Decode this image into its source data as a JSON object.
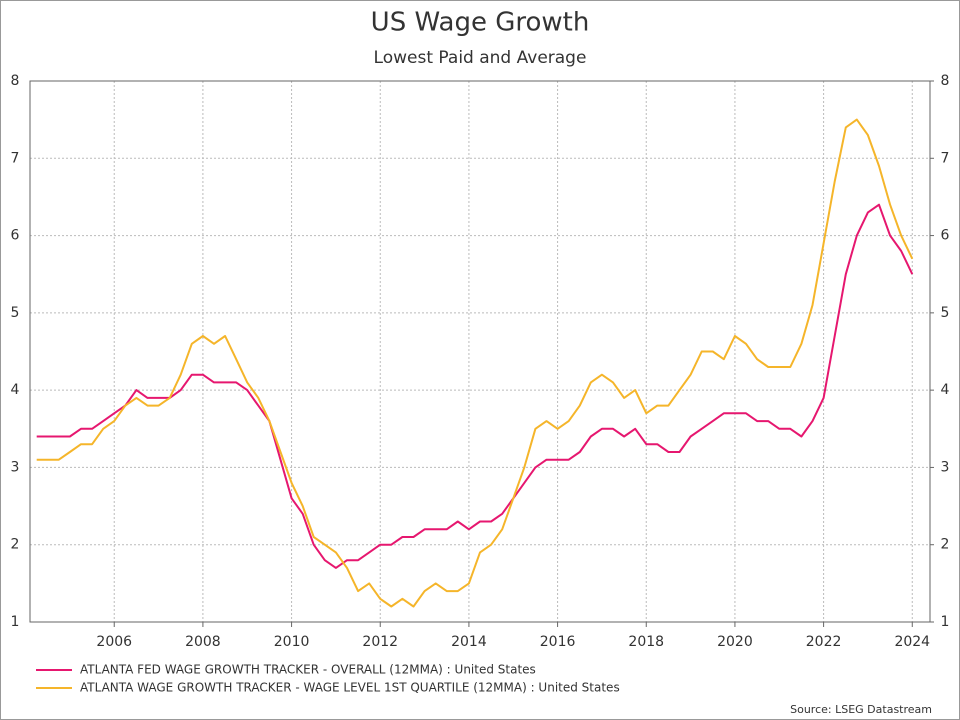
{
  "chart_data": {
    "type": "line",
    "title": "US Wage Growth",
    "subtitle": "Lowest Paid and Average",
    "source": "Source: LSEG Datastream",
    "x": [
      2004.25,
      2004.5,
      2004.75,
      2005,
      2005.25,
      2005.5,
      2005.75,
      2006,
      2006.25,
      2006.5,
      2006.75,
      2007,
      2007.25,
      2007.5,
      2007.75,
      2008,
      2008.25,
      2008.5,
      2008.75,
      2009,
      2009.25,
      2009.5,
      2009.75,
      2010,
      2010.25,
      2010.5,
      2010.75,
      2011,
      2011.25,
      2011.5,
      2011.75,
      2012,
      2012.25,
      2012.5,
      2012.75,
      2013,
      2013.25,
      2013.5,
      2013.75,
      2014,
      2014.25,
      2014.5,
      2014.75,
      2015,
      2015.25,
      2015.5,
      2015.75,
      2016,
      2016.25,
      2016.5,
      2016.75,
      2017,
      2017.25,
      2017.5,
      2017.75,
      2018,
      2018.25,
      2018.5,
      2018.75,
      2019,
      2019.25,
      2019.5,
      2019.75,
      2020,
      2020.25,
      2020.5,
      2020.75,
      2021,
      2021.25,
      2021.5,
      2021.75,
      2022,
      2022.25,
      2022.5,
      2022.75,
      2023,
      2023.25,
      2023.5,
      2023.75,
      2024
    ],
    "series": [
      {
        "name": "ATLANTA FED WAGE GROWTH TRACKER - OVERALL (12MMA) : United States",
        "color": "#e6176f",
        "values": [
          3.4,
          3.4,
          3.4,
          3.4,
          3.5,
          3.5,
          3.6,
          3.7,
          3.8,
          4.0,
          3.9,
          3.9,
          3.9,
          4.0,
          4.2,
          4.2,
          4.1,
          4.1,
          4.1,
          4.0,
          3.8,
          3.6,
          3.1,
          2.6,
          2.4,
          2.0,
          1.8,
          1.7,
          1.8,
          1.8,
          1.9,
          2.0,
          2.0,
          2.1,
          2.1,
          2.2,
          2.2,
          2.2,
          2.3,
          2.2,
          2.3,
          2.3,
          2.4,
          2.6,
          2.8,
          3.0,
          3.1,
          3.1,
          3.1,
          3.2,
          3.4,
          3.5,
          3.5,
          3.4,
          3.5,
          3.3,
          3.3,
          3.2,
          3.2,
          3.4,
          3.5,
          3.6,
          3.7,
          3.7,
          3.7,
          3.6,
          3.6,
          3.5,
          3.5,
          3.4,
          3.6,
          3.9,
          4.7,
          5.5,
          6.0,
          6.3,
          6.4,
          6.0,
          5.8,
          5.5
        ]
      },
      {
        "name": "ATLANTA WAGE GROWTH TRACKER - WAGE LEVEL 1ST QUARTILE (12MMA) : United States",
        "color": "#f5b52a",
        "values": [
          3.1,
          3.1,
          3.1,
          3.2,
          3.3,
          3.3,
          3.5,
          3.6,
          3.8,
          3.9,
          3.8,
          3.8,
          3.9,
          4.2,
          4.6,
          4.7,
          4.6,
          4.7,
          4.4,
          4.1,
          3.9,
          3.6,
          3.2,
          2.8,
          2.5,
          2.1,
          2.0,
          1.9,
          1.7,
          1.4,
          1.5,
          1.3,
          1.2,
          1.3,
          1.2,
          1.4,
          1.5,
          1.4,
          1.4,
          1.5,
          1.9,
          2.0,
          2.2,
          2.6,
          3.0,
          3.5,
          3.6,
          3.5,
          3.6,
          3.8,
          4.1,
          4.2,
          4.1,
          3.9,
          4.0,
          3.7,
          3.8,
          3.8,
          4.0,
          4.2,
          4.5,
          4.5,
          4.4,
          4.7,
          4.6,
          4.4,
          4.3,
          4.3,
          4.3,
          4.6,
          5.1,
          5.9,
          6.7,
          7.4,
          7.5,
          7.3,
          6.9,
          6.4,
          6.0,
          5.7
        ]
      }
    ],
    "xlim": [
      2004.1,
      2024.4
    ],
    "xticks": [
      2006,
      2008,
      2010,
      2012,
      2014,
      2016,
      2018,
      2020,
      2022,
      2024
    ],
    "ylim": [
      1,
      8
    ],
    "yticks": [
      1,
      2,
      3,
      4,
      5,
      6,
      7,
      8
    ],
    "y2lim": [
      1,
      8
    ],
    "y2ticks": [
      1,
      2,
      3,
      4,
      5,
      6,
      7,
      8
    ],
    "grid": true
  }
}
